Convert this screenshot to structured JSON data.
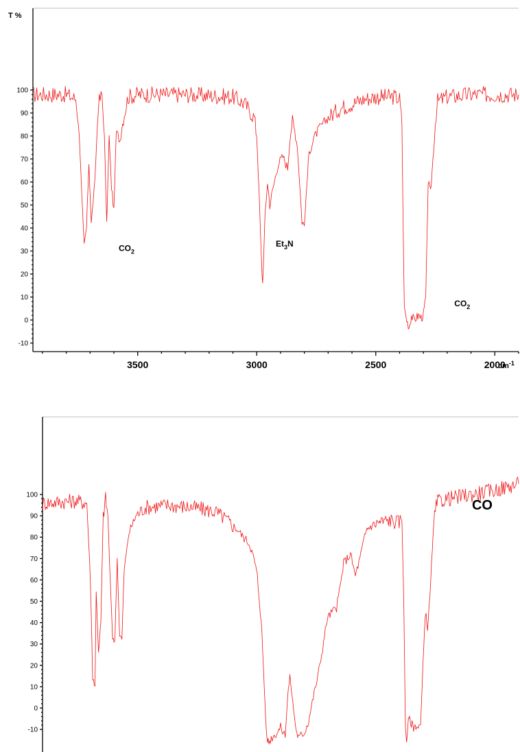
{
  "colors": {
    "trace": "#ee1111",
    "axis": "#000000",
    "frame": "#bdbdbd"
  },
  "chart_data": [
    {
      "type": "line",
      "ylabel": "T %",
      "xunit": "cm-1",
      "xunit_base": "cm",
      "xunit_exp": "-1",
      "xlim": [
        3940,
        1900
      ],
      "ylim": [
        -12,
        110
      ],
      "yticks": [
        -10,
        0,
        10,
        20,
        30,
        40,
        50,
        60,
        70,
        80,
        90,
        100
      ],
      "xticks": [
        3500,
        3000,
        2500,
        2000
      ],
      "annotations": [
        {
          "base": "CO",
          "sub": "2",
          "x": 3580,
          "y": 30
        },
        {
          "base": "Et",
          "sub": "3",
          "tail": "N",
          "x": 2920,
          "y": 32
        },
        {
          "base": "CO",
          "sub": "2",
          "x": 2170,
          "y": 6
        }
      ],
      "series": [
        {
          "noise": 3,
          "x": [
            3940,
            3800,
            3760,
            3745,
            3735,
            3725,
            3715,
            3705,
            3695,
            3680,
            3665,
            3650,
            3640,
            3630,
            3620,
            3610,
            3600,
            3590,
            3575,
            3560,
            3540,
            3500,
            3300,
            3100,
            3050,
            3030,
            3010,
            3000,
            2990,
            2980,
            2975,
            2965,
            2955,
            2945,
            2930,
            2910,
            2890,
            2870,
            2860,
            2850,
            2840,
            2830,
            2820,
            2810,
            2800,
            2790,
            2780,
            2760,
            2740,
            2700,
            2650,
            2600,
            2550,
            2500,
            2450,
            2420,
            2400,
            2390,
            2385,
            2380,
            2370,
            2360,
            2350,
            2340,
            2330,
            2320,
            2310,
            2300,
            2290,
            2285,
            2280,
            2270,
            2260,
            2250,
            2240,
            2200,
            2100,
            2000,
            1900
          ],
          "y": [
            98,
            98,
            96,
            80,
            55,
            32,
            40,
            68,
            42,
            60,
            94,
            98,
            80,
            42,
            80,
            58,
            48,
            82,
            78,
            88,
            97,
            98,
            98,
            97,
            94,
            91,
            88,
            80,
            55,
            25,
            16,
            45,
            60,
            50,
            58,
            68,
            71,
            66,
            80,
            86,
            82,
            76,
            60,
            43,
            41,
            58,
            73,
            79,
            83,
            88,
            92,
            94,
            96,
            97,
            97,
            97,
            96,
            85,
            40,
            5,
            0,
            -3,
            2,
            0,
            1,
            2,
            1,
            2,
            10,
            35,
            60,
            55,
            70,
            85,
            95,
            97,
            98,
            98,
            98
          ]
        }
      ]
    },
    {
      "type": "line",
      "xlim": [
        3940,
        1900
      ],
      "ylim": [
        -18,
        112
      ],
      "yticks": [
        -10,
        0,
        10,
        20,
        30,
        40,
        50,
        60,
        70,
        80,
        90,
        100
      ],
      "annotations": [
        {
          "base": "CO",
          "x": 2100,
          "y": 93
        }
      ],
      "series": [
        {
          "noise": 3,
          "x": [
            3940,
            3800,
            3750,
            3735,
            3725,
            3715,
            3710,
            3700,
            3690,
            3680,
            3670,
            3660,
            3650,
            3640,
            3630,
            3620,
            3610,
            3600,
            3590,
            3570,
            3540,
            3500,
            3400,
            3300,
            3200,
            3150,
            3120,
            3100,
            3080,
            3060,
            3050,
            3040,
            3030,
            3020,
            3010,
            3000,
            2990,
            2980,
            2970,
            2960,
            2940,
            2920,
            2900,
            2890,
            2880,
            2860,
            2850,
            2840,
            2830,
            2820,
            2800,
            2780,
            2760,
            2740,
            2720,
            2700,
            2680,
            2660,
            2650,
            2620,
            2600,
            2580,
            2560,
            2550,
            2520,
            2500,
            2450,
            2420,
            2400,
            2392,
            2385,
            2380,
            2375,
            2370,
            2360,
            2350,
            2340,
            2330,
            2320,
            2310,
            2300,
            2290,
            2280,
            2270,
            2260,
            2250,
            2240,
            2200,
            2100,
            2000,
            1900
          ],
          "y": [
            96,
            97,
            96,
            60,
            15,
            10,
            55,
            25,
            40,
            90,
            98,
            90,
            60,
            33,
            32,
            70,
            35,
            32,
            65,
            82,
            90,
            94,
            95,
            94,
            92,
            88,
            85,
            83,
            80,
            78,
            76,
            72,
            68,
            62,
            50,
            35,
            10,
            -14,
            -16,
            -14,
            -12,
            -9,
            -13,
            5,
            15,
            -5,
            -12,
            -14,
            -12,
            -12,
            -6,
            5,
            15,
            28,
            42,
            45,
            47,
            60,
            68,
            72,
            62,
            70,
            80,
            84,
            86,
            87,
            88,
            87,
            88,
            50,
            -10,
            -15,
            -8,
            -5,
            -7,
            -9,
            -8,
            -9,
            -8,
            20,
            45,
            38,
            52,
            75,
            90,
            96,
            97,
            98,
            100,
            102,
            105
          ]
        }
      ]
    }
  ]
}
